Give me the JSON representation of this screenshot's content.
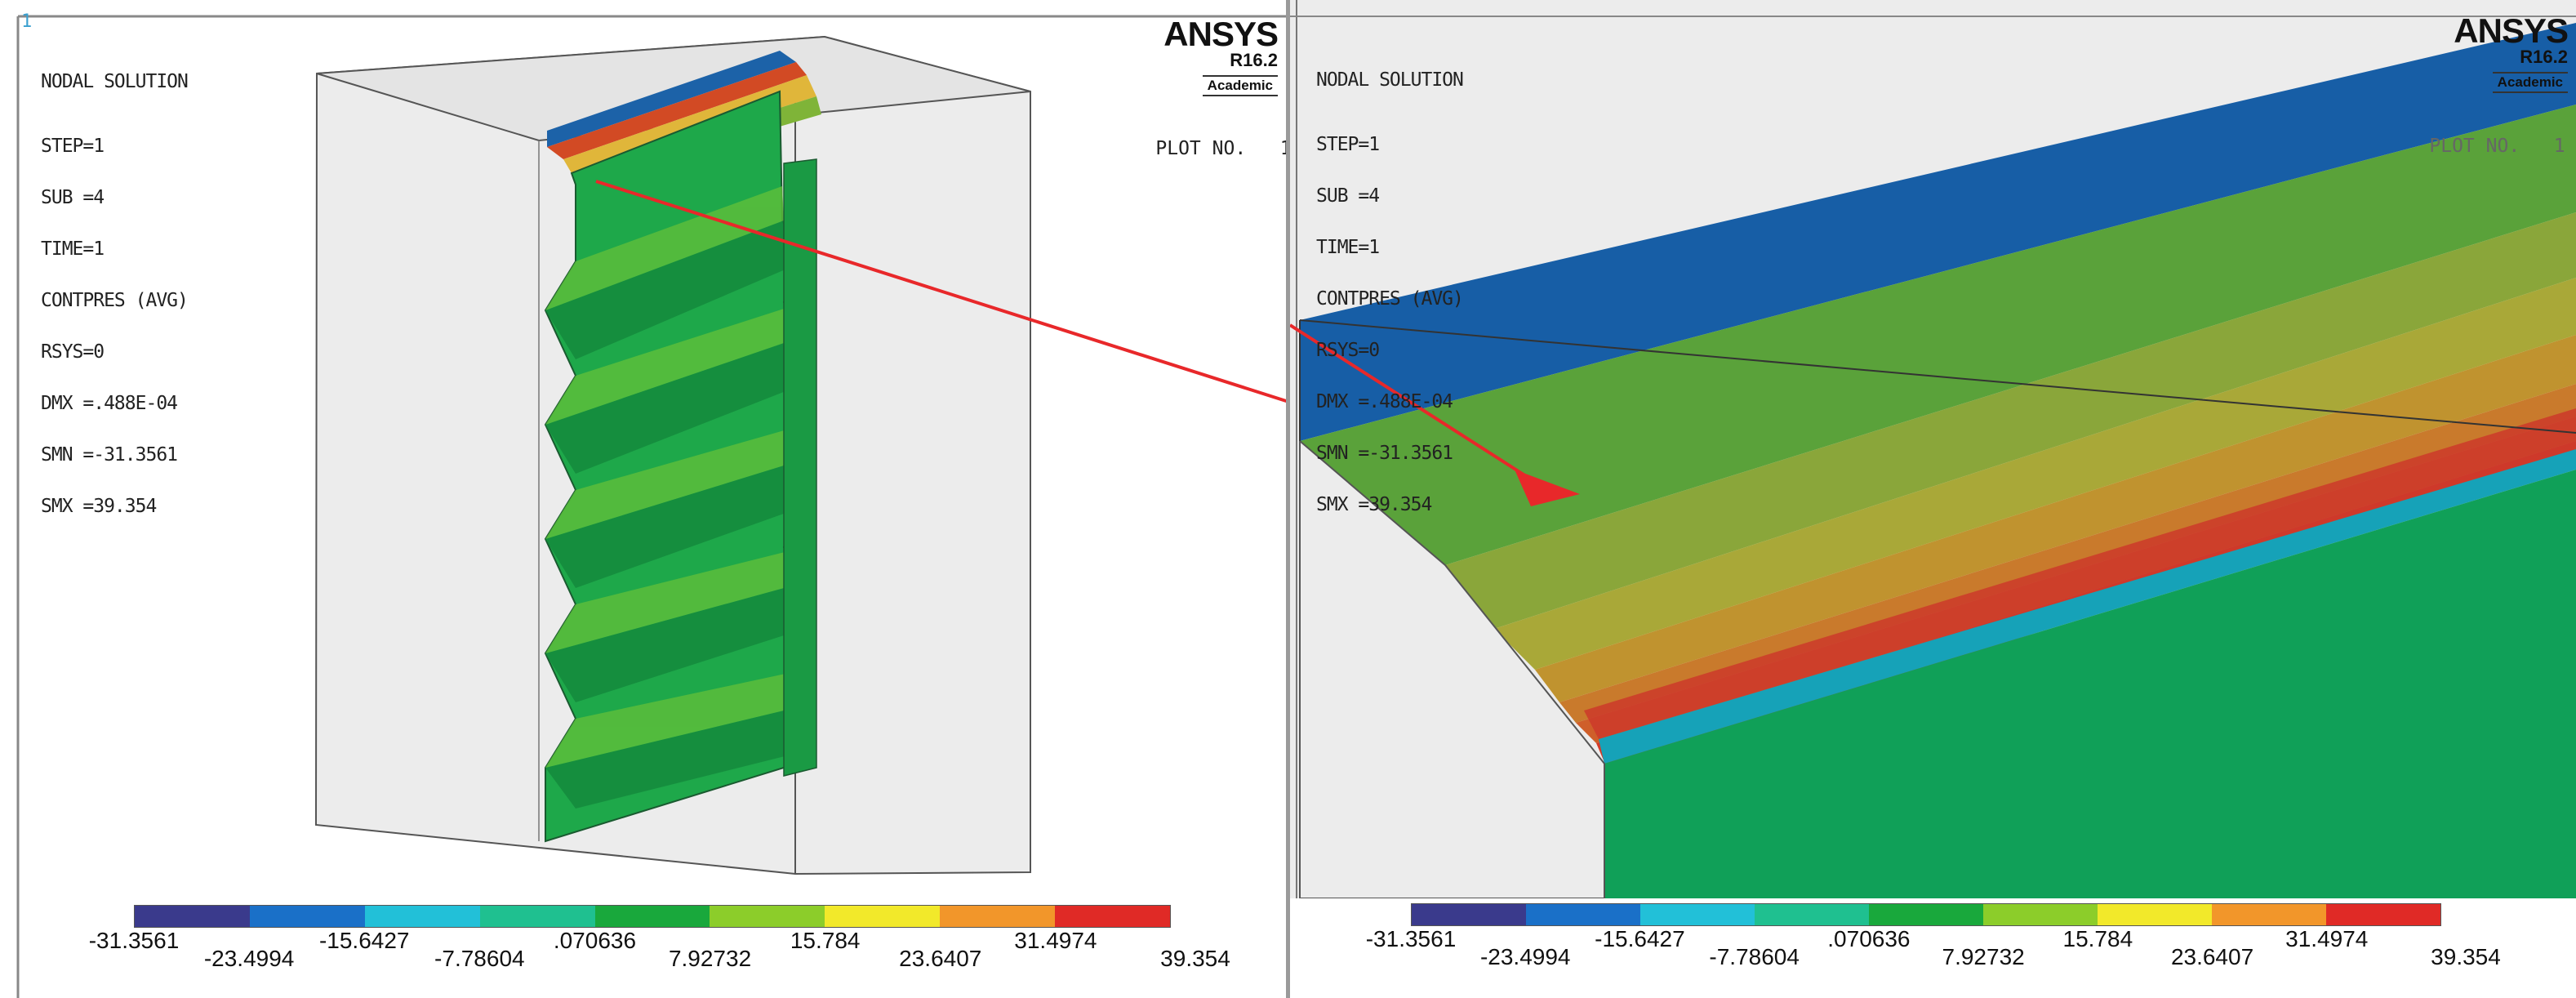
{
  "software": {
    "name": "ANSYS",
    "version": "R16.2",
    "edition": "Academic"
  },
  "window_number": "1",
  "plot_label": "PLOT NO.",
  "plot_number": "1",
  "info_lines": [
    "NODAL SOLUTION",
    "STEP=1",
    "SUB =4",
    "TIME=1",
    "CONTPRES (AVG)",
    "RSYS=0",
    "DMX =.488E-04",
    "SMN =-31.3561",
    "SMX =39.354"
  ],
  "legend": {
    "values": [
      "-31.3561",
      "-23.4994",
      "-15.6427",
      "-7.78604",
      ".070636",
      "7.92732",
      "15.784",
      "23.6407",
      "31.4974",
      "39.354"
    ],
    "colors": [
      "#3a3a8c",
      "#1a70c8",
      "#22c0d8",
      "#1fc090",
      "#19a83c",
      "#8ccd2a",
      "#f2e92a",
      "#f2962a",
      "#e02a26"
    ]
  },
  "colors": {
    "arrow": "#e8282a",
    "box_face": "#ececec",
    "outline": "#555555"
  }
}
